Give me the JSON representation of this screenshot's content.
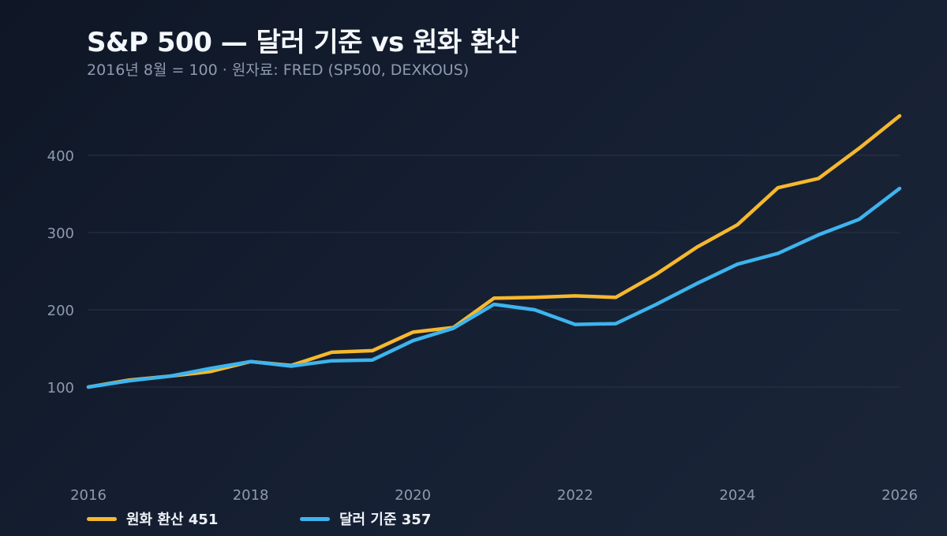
{
  "header": {
    "title": "S&P 500 — 달러 기준 vs 원화 환산",
    "subtitle": "2016년 8월 = 100  ·  원자료: FRED (SP500, DEXKOUS)"
  },
  "legend": {
    "krw_label": "원화 환산 451",
    "usd_label": "달러 기준 357"
  },
  "colors": {
    "krw": "#f5b82e",
    "usd": "#3db4ee",
    "grid": "#2a3447",
    "tick": "#8e9ab0"
  },
  "chart_data": {
    "type": "line",
    "title": "S&P 500 — 달러 기준 vs 원화 환산",
    "subtitle": "2016년 8월 = 100  ·  원자료: FRED (SP500, DEXKOUS)",
    "xlim": [
      2016,
      2026
    ],
    "ylim": [
      0,
      460
    ],
    "x_ticks": [
      2016,
      2018,
      2020,
      2022,
      2024,
      2026
    ],
    "y_ticks": [
      100,
      200,
      300,
      400
    ],
    "grid": true,
    "legend_position": "bottom-left",
    "series": [
      {
        "name": "원화 환산",
        "color": "#f5b82e",
        "points": [
          [
            2016.0,
            100
          ],
          [
            2016.5,
            109
          ],
          [
            2017.0,
            114
          ],
          [
            2017.5,
            120
          ],
          [
            2018.0,
            133
          ],
          [
            2018.5,
            128
          ],
          [
            2019.0,
            145
          ],
          [
            2019.5,
            147
          ],
          [
            2020.0,
            171
          ],
          [
            2020.5,
            177
          ],
          [
            2021.0,
            215
          ],
          [
            2021.5,
            216
          ],
          [
            2022.0,
            218
          ],
          [
            2022.5,
            216
          ],
          [
            2023.0,
            246
          ],
          [
            2023.5,
            281
          ],
          [
            2024.0,
            310
          ],
          [
            2024.5,
            358
          ],
          [
            2025.0,
            370
          ],
          [
            2025.5,
            409
          ],
          [
            2026.0,
            451
          ]
        ]
      },
      {
        "name": "달러 기준",
        "color": "#3db4ee",
        "points": [
          [
            2016.0,
            100
          ],
          [
            2016.5,
            108
          ],
          [
            2017.0,
            114
          ],
          [
            2017.5,
            124
          ],
          [
            2018.0,
            133
          ],
          [
            2018.5,
            127
          ],
          [
            2019.0,
            134
          ],
          [
            2019.5,
            135
          ],
          [
            2020.0,
            160
          ],
          [
            2020.5,
            176
          ],
          [
            2021.0,
            207
          ],
          [
            2021.5,
            200
          ],
          [
            2022.0,
            181
          ],
          [
            2022.5,
            182
          ],
          [
            2023.0,
            207
          ],
          [
            2023.5,
            234
          ],
          [
            2024.0,
            259
          ],
          [
            2024.5,
            273
          ],
          [
            2025.0,
            297
          ],
          [
            2025.5,
            317
          ],
          [
            2026.0,
            357
          ]
        ]
      }
    ]
  }
}
